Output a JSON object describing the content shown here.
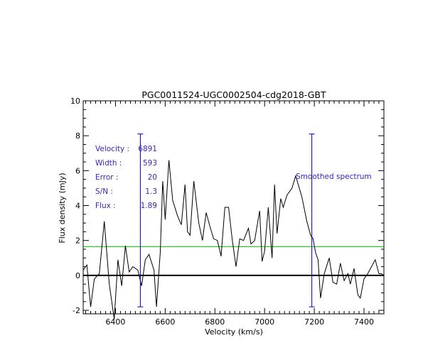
{
  "chart_data": {
    "type": "line",
    "title": "PGC0011524-UGC0002504-cdg2018-GBT",
    "xlabel": "Velocity (km/s)",
    "ylabel": "Flux density (mJy)",
    "xlim": [
      6270,
      7480
    ],
    "ylim": [
      -2.2,
      10
    ],
    "xticks": [
      6400,
      6600,
      6800,
      7000,
      7200,
      7400
    ],
    "xtick_labels": [
      "6400",
      "6600",
      "6800",
      "7000",
      "7200",
      "7400"
    ],
    "yticks": [
      -2,
      0,
      2,
      4,
      6,
      8,
      10
    ],
    "ytick_labels": [
      "-2",
      "0",
      "2",
      "4",
      "6",
      "8",
      "10"
    ],
    "series": [
      {
        "color": "#000000",
        "x": [
          6270,
          6285,
          6300,
          6315,
          6335,
          6355,
          6375,
          6395,
          6410,
          6425,
          6440,
          6455,
          6470,
          6490,
          6505,
          6520,
          6535,
          6555,
          6565,
          6580,
          6590,
          6600,
          6615,
          6630,
          6650,
          6665,
          6680,
          6690,
          6700,
          6715,
          6735,
          6750,
          6765,
          6780,
          6795,
          6810,
          6825,
          6840,
          6855,
          6870,
          6885,
          6900,
          6915,
          6935,
          6945,
          6960,
          6980,
          6990,
          7000,
          7015,
          7030,
          7040,
          7050,
          7065,
          7075,
          7090,
          7110,
          7125,
          7150,
          7170,
          7185,
          7195,
          7205,
          7215,
          7225,
          7240,
          7260,
          7275,
          7290,
          7305,
          7320,
          7335,
          7345,
          7360,
          7375,
          7385,
          7400,
          7415,
          7430,
          7445,
          7460,
          7470,
          7480
        ],
        "values": [
          0.3,
          0.6,
          -1.8,
          -0.2,
          0.1,
          3.1,
          -0.5,
          -2.5,
          0.9,
          -0.6,
          1.7,
          0.2,
          0.5,
          0.3,
          -0.6,
          0.9,
          1.2,
          0.3,
          -1.8,
          1.3,
          5.4,
          3.2,
          6.6,
          4.3,
          3.4,
          2.9,
          5.2,
          2.5,
          2.3,
          5.4,
          3.0,
          2.0,
          3.6,
          2.8,
          2.1,
          2.0,
          1.1,
          3.9,
          3.9,
          2.0,
          0.5,
          2.1,
          2.0,
          2.7,
          1.8,
          2.0,
          3.7,
          0.8,
          1.4,
          3.9,
          1.0,
          5.2,
          2.4,
          4.4,
          3.9,
          4.6,
          5.0,
          5.7,
          4.5,
          3.1,
          2.3,
          2.1,
          1.3,
          0.9,
          -1.3,
          0.1,
          1.0,
          -0.4,
          -0.5,
          0.7,
          -0.3,
          0.1,
          -0.5,
          0.4,
          -1.1,
          -1.3,
          -0.2,
          0.1,
          0.5,
          0.9,
          0.1,
          0.1,
          0.0
        ]
      }
    ],
    "zero_line": {
      "y": 0,
      "color": "#000000"
    },
    "mean_line": {
      "y": 1.65,
      "color": "#00c000"
    },
    "markers": [
      {
        "x": 6500,
        "y_range": [
          -1.8,
          8.1
        ],
        "color": "#0000c0"
      },
      {
        "x": 7190,
        "y_range": [
          -1.8,
          8.1
        ],
        "color": "#0000c0"
      }
    ],
    "annotations": [
      {
        "label": "Velocity :",
        "value": "6891"
      },
      {
        "label": "Width :",
        "value": "593"
      },
      {
        "label": "Error :",
        "value": "20"
      },
      {
        "label": "S/N :",
        "value": "1.3"
      },
      {
        "label": "Flux :",
        "value": "1.89"
      }
    ],
    "annotation_color": "#3a1fc0",
    "spectrum_label": "Smoothed spectrum",
    "grid": false
  }
}
